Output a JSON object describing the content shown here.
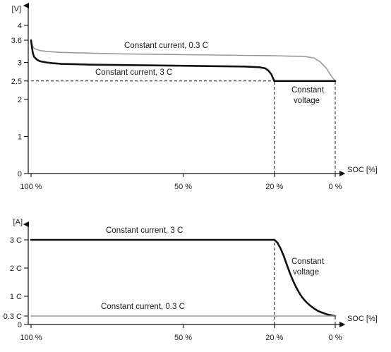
{
  "chart_data": [
    {
      "type": "line",
      "ylabel": "[V]",
      "xlabel": "SOC [%]",
      "x_tick_labels": [
        "100 %",
        "50 %",
        "20 %",
        "0 %"
      ],
      "x_ticks": [
        100,
        50,
        20,
        0
      ],
      "y_tick_labels": [
        "0",
        "1",
        "2",
        "2.5",
        "3",
        "3.6",
        "4"
      ],
      "y_ticks": [
        0,
        1,
        2,
        2.5,
        3,
        3.6,
        4
      ],
      "ylim": [
        0,
        4.2
      ],
      "xlim": [
        100,
        0
      ],
      "reference_lines": [
        {
          "axis": "y",
          "value": 2.5,
          "from_x": 100,
          "to_x": 0,
          "style": "dashed"
        },
        {
          "axis": "x",
          "value": 20,
          "from_y": 0,
          "to_y": 2.5,
          "style": "dashed"
        },
        {
          "axis": "x",
          "value": 0,
          "from_y": 0,
          "to_y": 2.5,
          "style": "dashed"
        }
      ],
      "series": [
        {
          "name": "Constant current, 0.3 C",
          "color": "#9a9a9a",
          "x": [
            100,
            99.5,
            99,
            97,
            95,
            90,
            80,
            70,
            60,
            50,
            40,
            30,
            20,
            15,
            10,
            7,
            5,
            3,
            2,
            1,
            0
          ],
          "y": [
            3.6,
            3.45,
            3.38,
            3.32,
            3.3,
            3.27,
            3.25,
            3.23,
            3.22,
            3.21,
            3.2,
            3.19,
            3.18,
            3.17,
            3.16,
            3.12,
            3.02,
            2.85,
            2.72,
            2.6,
            2.5
          ]
        },
        {
          "name": "Constant current, 3 C",
          "color": "#111111",
          "x": [
            100,
            99.7,
            99.4,
            99,
            98,
            97,
            95,
            93,
            90,
            85,
            80,
            70,
            60,
            50,
            40,
            30,
            25,
            23,
            22,
            21,
            20.5,
            20
          ],
          "y": [
            3.6,
            3.4,
            3.25,
            3.15,
            3.07,
            3.03,
            3.0,
            2.98,
            2.96,
            2.95,
            2.94,
            2.93,
            2.92,
            2.91,
            2.9,
            2.89,
            2.87,
            2.84,
            2.78,
            2.68,
            2.58,
            2.5
          ]
        },
        {
          "name": "Constant voltage",
          "color": "#111111",
          "x": [
            20,
            0
          ],
          "y": [
            2.5,
            2.5
          ]
        }
      ],
      "annotations": [
        {
          "text": "Constant current, 0.3 C"
        },
        {
          "text": "Constant current, 3 C"
        },
        {
          "text": "Constant"
        },
        {
          "text": "voltage"
        }
      ]
    },
    {
      "type": "line",
      "ylabel": "[A]",
      "xlabel": "SOC [%]",
      "x_tick_labels": [
        "100 %",
        "50 %",
        "20 %",
        "0 %"
      ],
      "x_ticks": [
        100,
        50,
        20,
        0
      ],
      "y_tick_labels": [
        "0",
        "0.3 C",
        "1 C",
        "2 C",
        "3 C"
      ],
      "y_ticks": [
        0,
        0.3,
        1,
        2,
        3
      ],
      "ylim": [
        0,
        3.3
      ],
      "xlim": [
        100,
        0
      ],
      "reference_lines": [
        {
          "axis": "x",
          "value": 20,
          "from_y": 0,
          "to_y": 3,
          "style": "dashed"
        },
        {
          "axis": "x",
          "value": 0,
          "from_y": 0,
          "to_y": 0.3,
          "style": "dashed"
        }
      ],
      "series": [
        {
          "name": "Constant current, 3 C",
          "color": "#111111",
          "x": [
            100,
            20
          ],
          "y": [
            3,
            3
          ]
        },
        {
          "name": "Constant voltage",
          "color": "#111111",
          "x": [
            20,
            19,
            18,
            17,
            16,
            15,
            14,
            13,
            12,
            11,
            10,
            9,
            8,
            7,
            6,
            5,
            4,
            3,
            2,
            1,
            0
          ],
          "y": [
            3.0,
            2.9,
            2.7,
            2.45,
            2.15,
            1.85,
            1.58,
            1.35,
            1.15,
            0.98,
            0.85,
            0.74,
            0.65,
            0.57,
            0.5,
            0.45,
            0.41,
            0.37,
            0.34,
            0.32,
            0.3
          ]
        },
        {
          "name": "Constant current, 0.3 C",
          "color": "#9a9a9a",
          "x": [
            100,
            0
          ],
          "y": [
            0.3,
            0.3
          ]
        }
      ],
      "annotations": [
        {
          "text": "Constant current, 3 C"
        },
        {
          "text": "Constant"
        },
        {
          "text": "voltage"
        },
        {
          "text": "Constant current, 0.3 C"
        }
      ]
    }
  ]
}
